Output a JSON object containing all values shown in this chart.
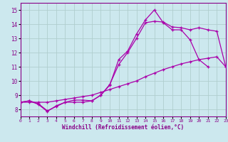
{
  "background_color": "#cce8ee",
  "grid_color": "#b0cece",
  "line_color": "#aa00aa",
  "xlabel": "Windchill (Refroidissement éolien,°C)",
  "xlim": [
    0,
    23
  ],
  "ylim": [
    7.5,
    15.5
  ],
  "yticks": [
    8,
    9,
    10,
    11,
    12,
    13,
    14,
    15
  ],
  "xticks": [
    0,
    1,
    2,
    3,
    4,
    5,
    6,
    7,
    8,
    9,
    10,
    11,
    12,
    13,
    14,
    15,
    16,
    17,
    18,
    19,
    20,
    21,
    22,
    23
  ],
  "line1_x": [
    0,
    1,
    2,
    3,
    4,
    5,
    6,
    7,
    8,
    9,
    10,
    11,
    12,
    13,
    14,
    15,
    16,
    17,
    18,
    19,
    20,
    21
  ],
  "line1_y": [
    8.5,
    8.6,
    8.4,
    7.9,
    8.2,
    8.5,
    8.5,
    8.5,
    8.6,
    9.0,
    9.7,
    11.5,
    12.1,
    13.3,
    14.3,
    15.0,
    14.1,
    13.6,
    13.6,
    12.9,
    11.5,
    11.0
  ],
  "line2_x": [
    0,
    1,
    2,
    3,
    4,
    5,
    6,
    7,
    8,
    9,
    10,
    11,
    12,
    13,
    14,
    15,
    16,
    17,
    18,
    19,
    20,
    21,
    22,
    23
  ],
  "line2_y": [
    8.5,
    8.6,
    8.35,
    7.85,
    8.25,
    8.5,
    8.65,
    8.65,
    8.6,
    9.0,
    9.75,
    11.15,
    12.0,
    13.0,
    14.1,
    14.2,
    14.15,
    13.8,
    13.75,
    13.6,
    13.75,
    13.6,
    13.5,
    11.0
  ],
  "line3_x": [
    0,
    1,
    2,
    3,
    4,
    5,
    6,
    7,
    8,
    9,
    10,
    11,
    12,
    13,
    14,
    15,
    16,
    17,
    18,
    19,
    20,
    21,
    22,
    23
  ],
  "line3_y": [
    8.5,
    8.5,
    8.5,
    8.5,
    8.6,
    8.7,
    8.8,
    8.9,
    9.0,
    9.2,
    9.4,
    9.6,
    9.8,
    10.0,
    10.3,
    10.55,
    10.8,
    11.0,
    11.2,
    11.35,
    11.5,
    11.6,
    11.7,
    11.0
  ]
}
